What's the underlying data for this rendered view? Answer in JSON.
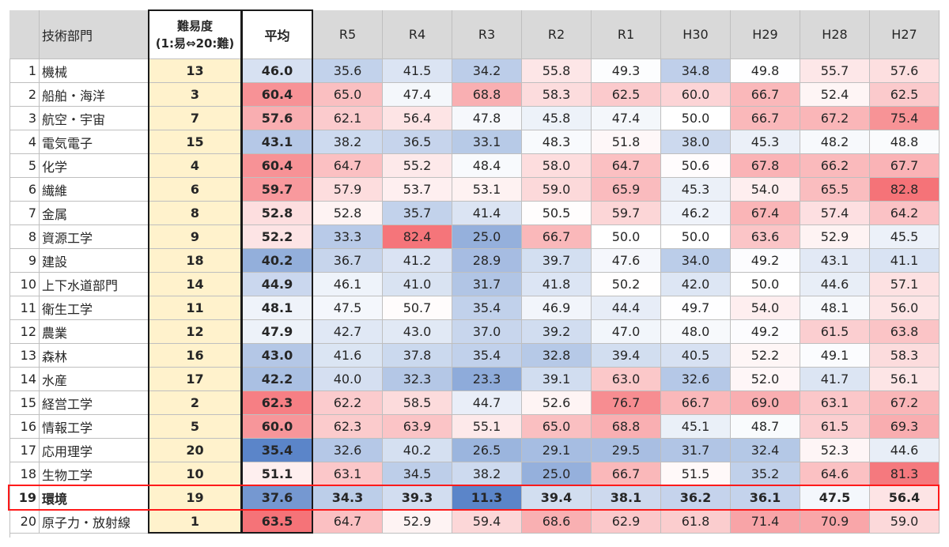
{
  "table": {
    "headers": [
      "",
      "技術部門",
      "難易度",
      "(1:易⇔20:難)",
      "平均",
      "R5",
      "R4",
      "R3",
      "R2",
      "R1",
      "H30",
      "H29",
      "H28",
      "H27"
    ],
    "rows": [
      {
        "no": "1",
        "name": "機械",
        "diff": "13",
        "avg": "46.0",
        "v": [
          "35.6",
          "41.5",
          "34.2",
          "55.8",
          "49.3",
          "34.8",
          "49.8",
          "55.7",
          "57.6"
        ]
      },
      {
        "no": "2",
        "name": "船舶・海洋",
        "diff": "3",
        "avg": "60.4",
        "v": [
          "65.0",
          "47.4",
          "68.8",
          "58.3",
          "62.5",
          "60.0",
          "66.7",
          "52.4",
          "62.5"
        ]
      },
      {
        "no": "3",
        "name": "航空・宇宙",
        "diff": "7",
        "avg": "57.6",
        "v": [
          "62.1",
          "56.4",
          "47.8",
          "45.8",
          "47.4",
          "50.0",
          "66.7",
          "67.2",
          "75.4"
        ]
      },
      {
        "no": "4",
        "name": "電気電子",
        "diff": "15",
        "avg": "43.1",
        "v": [
          "38.2",
          "36.5",
          "33.1",
          "48.3",
          "51.8",
          "38.0",
          "45.3",
          "48.2",
          "48.8"
        ]
      },
      {
        "no": "5",
        "name": "化学",
        "diff": "4",
        "avg": "60.4",
        "v": [
          "64.7",
          "55.2",
          "48.4",
          "58.0",
          "64.7",
          "50.6",
          "67.8",
          "66.2",
          "67.7"
        ]
      },
      {
        "no": "6",
        "name": "繊維",
        "diff": "6",
        "avg": "59.7",
        "v": [
          "57.9",
          "53.7",
          "53.1",
          "59.0",
          "65.9",
          "45.3",
          "54.0",
          "65.5",
          "82.8"
        ]
      },
      {
        "no": "7",
        "name": "金属",
        "diff": "8",
        "avg": "52.8",
        "v": [
          "52.8",
          "35.7",
          "41.4",
          "50.5",
          "59.7",
          "46.2",
          "67.4",
          "57.4",
          "64.2"
        ]
      },
      {
        "no": "8",
        "name": "資源工学",
        "diff": "9",
        "avg": "52.2",
        "v": [
          "33.3",
          "82.4",
          "25.0",
          "66.7",
          "50.0",
          "50.0",
          "63.6",
          "52.9",
          "45.5"
        ]
      },
      {
        "no": "9",
        "name": "建設",
        "diff": "18",
        "avg": "40.2",
        "v": [
          "36.7",
          "41.2",
          "28.9",
          "39.7",
          "47.6",
          "34.0",
          "49.2",
          "43.1",
          "41.1"
        ]
      },
      {
        "no": "10",
        "name": "上下水道部門",
        "diff": "14",
        "avg": "44.9",
        "v": [
          "46.1",
          "41.0",
          "31.7",
          "41.8",
          "50.2",
          "42.0",
          "50.0",
          "44.6",
          "57.1"
        ]
      },
      {
        "no": "11",
        "name": "衛生工学",
        "diff": "11",
        "avg": "48.1",
        "v": [
          "47.5",
          "50.7",
          "35.4",
          "46.9",
          "44.4",
          "49.7",
          "54.0",
          "48.1",
          "56.0"
        ]
      },
      {
        "no": "12",
        "name": "農業",
        "diff": "12",
        "avg": "47.9",
        "v": [
          "42.7",
          "43.0",
          "37.0",
          "39.2",
          "47.0",
          "48.0",
          "49.2",
          "61.5",
          "63.8"
        ]
      },
      {
        "no": "13",
        "name": "森林",
        "diff": "16",
        "avg": "43.0",
        "v": [
          "41.6",
          "37.8",
          "35.4",
          "32.8",
          "39.4",
          "40.5",
          "52.2",
          "49.1",
          "58.3"
        ]
      },
      {
        "no": "14",
        "name": "水産",
        "diff": "17",
        "avg": "42.2",
        "v": [
          "40.0",
          "32.3",
          "23.3",
          "39.1",
          "63.0",
          "32.6",
          "52.0",
          "41.7",
          "56.1"
        ]
      },
      {
        "no": "15",
        "name": "経営工学",
        "diff": "2",
        "avg": "62.3",
        "v": [
          "62.2",
          "58.5",
          "44.7",
          "52.6",
          "76.7",
          "66.7",
          "69.0",
          "63.1",
          "67.2"
        ]
      },
      {
        "no": "16",
        "name": "情報工学",
        "diff": "5",
        "avg": "60.0",
        "v": [
          "62.3",
          "63.9",
          "55.1",
          "65.0",
          "68.8",
          "45.1",
          "48.7",
          "61.5",
          "69.3"
        ]
      },
      {
        "no": "17",
        "name": "応用理学",
        "diff": "20",
        "avg": "35.4",
        "v": [
          "32.6",
          "40.2",
          "26.5",
          "29.1",
          "29.5",
          "31.7",
          "32.4",
          "52.3",
          "44.6"
        ]
      },
      {
        "no": "18",
        "name": "生物工学",
        "diff": "10",
        "avg": "51.1",
        "v": [
          "63.1",
          "34.5",
          "38.2",
          "25.0",
          "66.7",
          "51.5",
          "35.2",
          "64.6",
          "81.3"
        ]
      },
      {
        "no": "19",
        "name": "環境",
        "diff": "19",
        "avg": "37.6",
        "v": [
          "34.3",
          "39.3",
          "11.3",
          "39.4",
          "38.1",
          "36.2",
          "36.1",
          "47.5",
          "56.4"
        ],
        "highlight": true
      },
      {
        "no": "20",
        "name": "原子力・放射線",
        "diff": "1",
        "avg": "63.5",
        "v": [
          "64.7",
          "52.9",
          "59.4",
          "68.6",
          "62.9",
          "61.8",
          "71.4",
          "70.9",
          "59.0"
        ]
      }
    ]
  }
}
